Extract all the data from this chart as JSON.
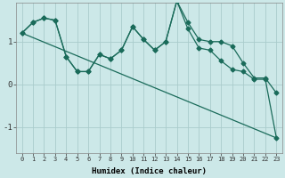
{
  "xlabel": "Humidex (Indice chaleur)",
  "bg_color": "#cce8e8",
  "grid_color": "#aacccc",
  "line_color": "#1a6b5a",
  "xlim": [
    -0.5,
    23.5
  ],
  "ylim": [
    -1.6,
    1.9
  ],
  "yticks": [
    -1,
    0,
    1
  ],
  "xticks": [
    0,
    1,
    2,
    3,
    4,
    5,
    6,
    7,
    8,
    9,
    10,
    11,
    12,
    13,
    14,
    15,
    16,
    17,
    18,
    19,
    20,
    21,
    22,
    23
  ],
  "series1_x": [
    0,
    1,
    2,
    3,
    4,
    5,
    6,
    7,
    8,
    9,
    10,
    11,
    12,
    13,
    14,
    15,
    16,
    17,
    18,
    19,
    20,
    21,
    22,
    23
  ],
  "series1_y": [
    1.2,
    1.45,
    1.55,
    1.5,
    0.65,
    0.3,
    0.3,
    0.7,
    0.6,
    0.8,
    1.35,
    1.05,
    0.8,
    1.0,
    1.95,
    1.45,
    1.05,
    1.0,
    1.0,
    0.9,
    0.5,
    0.15,
    0.15,
    -0.2
  ],
  "series2_x": [
    0,
    1,
    2,
    3,
    4,
    5,
    6,
    7,
    8,
    9,
    10,
    11,
    12,
    13,
    14,
    15,
    16,
    17,
    18,
    19,
    20,
    21,
    22,
    23
  ],
  "series2_y": [
    1.2,
    1.45,
    1.55,
    1.5,
    0.65,
    0.3,
    0.3,
    0.7,
    0.6,
    0.8,
    1.35,
    1.05,
    0.8,
    1.0,
    1.95,
    1.3,
    0.85,
    0.8,
    0.55,
    0.35,
    0.3,
    0.12,
    0.12,
    -1.25
  ],
  "series3_x": [
    0,
    23
  ],
  "series3_y": [
    1.2,
    -1.25
  ]
}
